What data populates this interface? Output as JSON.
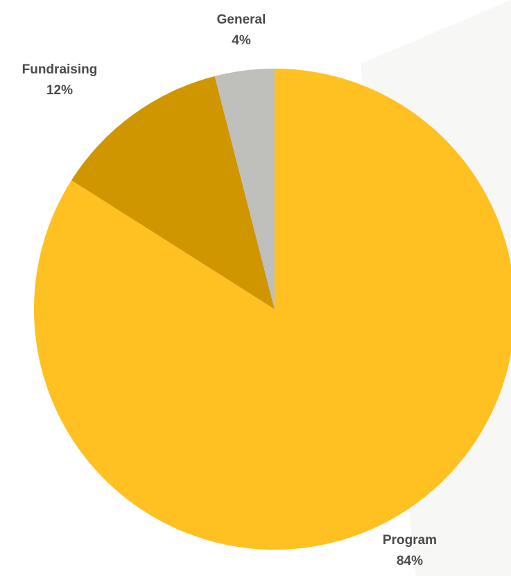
{
  "chart_data": {
    "type": "pie",
    "title": "",
    "slices": [
      {
        "name": "Program",
        "value": 84,
        "label": "84%",
        "color": "#FFC022"
      },
      {
        "name": "Fundraising",
        "value": 12,
        "label": "12%",
        "color": "#D09600"
      },
      {
        "name": "General",
        "value": 4,
        "label": "4%",
        "color": "#BFC0BB"
      }
    ],
    "start_angle_deg": 0,
    "direction": "clockwise",
    "legend": "none",
    "labels_position": "outside"
  }
}
